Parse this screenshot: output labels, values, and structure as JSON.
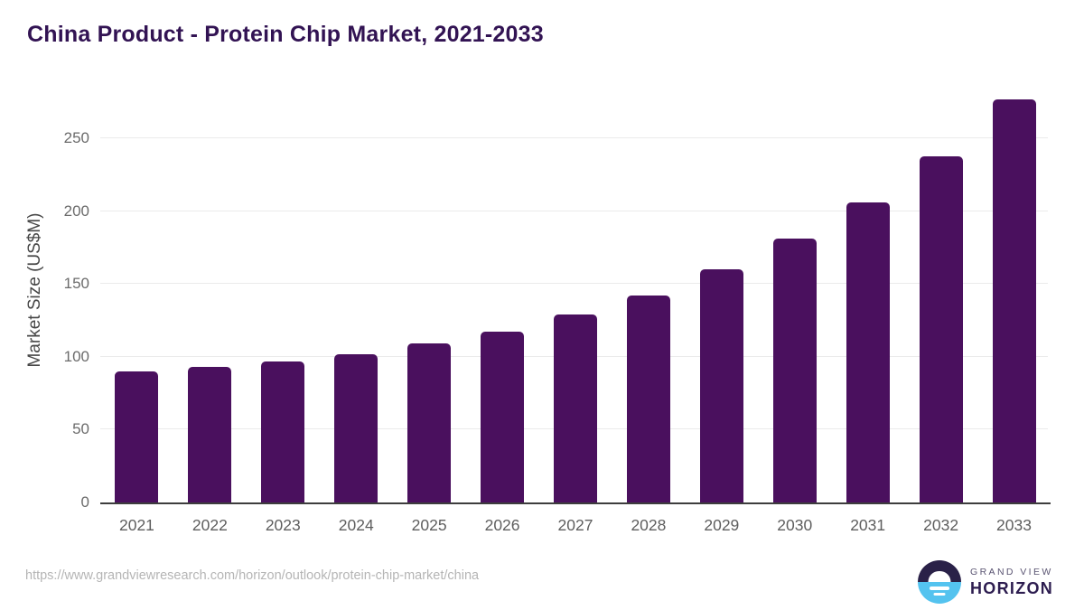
{
  "header": {
    "title": "China Product - Protein Chip Market, 2021-2033"
  },
  "chart_data": {
    "type": "bar",
    "title": "China Product - Protein Chip Market, 2021-2033",
    "categories": [
      "2021",
      "2022",
      "2023",
      "2024",
      "2025",
      "2026",
      "2027",
      "2028",
      "2029",
      "2030",
      "2031",
      "2032",
      "2033"
    ],
    "values": [
      90,
      93,
      97,
      102,
      109,
      117,
      129,
      142,
      160,
      181,
      206,
      238,
      277
    ],
    "xlabel": "",
    "ylabel": "Market Size (US$M)",
    "ylim": [
      0,
      283
    ],
    "yticks": [
      0,
      50,
      100,
      150,
      200,
      250
    ],
    "grid": "horizontal-gridlines",
    "legend": "none",
    "bar_color": "#4a105e"
  },
  "footer": {
    "source_url": "https://www.grandviewresearch.com/horizon/outlook/protein-chip-market/china",
    "brand_line1": "GRAND VIEW",
    "brand_line2": "HORIZON"
  },
  "colors": {
    "bar": "#4a105e",
    "title_text": "#321353",
    "axis_line": "#3d3d3d",
    "gridline": "#ebebeb",
    "tick_text": "#6b6b6b",
    "ylabel_text": "#474747",
    "url_text": "#b5b5b5",
    "logo_navy": "#2a2148",
    "logo_blue": "#54c3ef",
    "logo_grandview_text": "#5a5472",
    "logo_horizon_text": "#2d1d50"
  }
}
